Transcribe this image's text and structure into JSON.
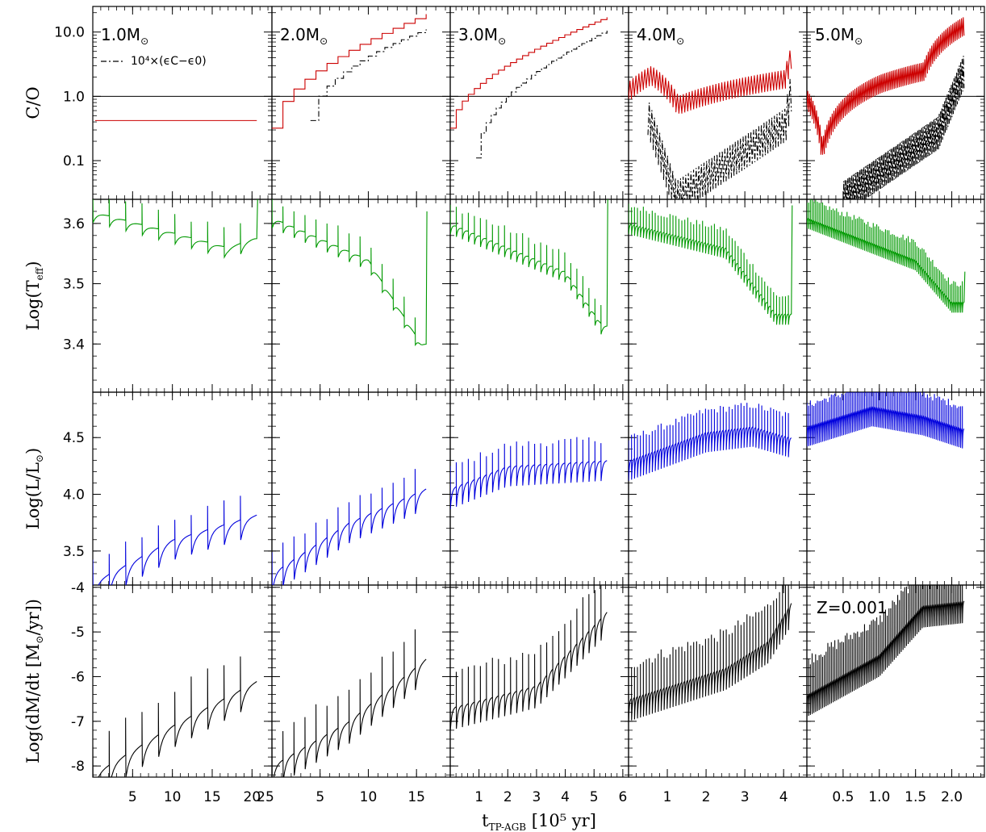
{
  "chart_data": {
    "type": "line",
    "grid": {
      "rows": [
        "C/O",
        "Log(Teff)",
        "Log(L/Lsun)",
        "Log(dM/dt)"
      ],
      "columns": [
        "1.0M",
        "2.0M",
        "3.0M",
        "4.0M",
        "5.0M"
      ]
    },
    "panel_labels": [
      "1.0M",
      "2.0M",
      "3.0M",
      "4.0M",
      "5.0M"
    ],
    "metallicity_label": "Z=0.001",
    "legend_label": "10⁴×(ϵC−ϵ0)",
    "x_axis": {
      "label_main": "t",
      "label_sub": "TP-AGB",
      "label_rest": " [10⁵ yr]",
      "columns": [
        {
          "range": [
            0,
            22.5
          ],
          "ticks": [
            5,
            10,
            15,
            20
          ],
          "tick_labels": [
            "5",
            "10",
            "15",
            "20"
          ],
          "edge_label": "25"
        },
        {
          "range": [
            0,
            18.5
          ],
          "ticks": [
            5,
            10,
            15
          ],
          "tick_labels": [
            "5",
            "10",
            "15"
          ]
        },
        {
          "range": [
            0,
            6.2
          ],
          "ticks": [
            1,
            2,
            3,
            4,
            5,
            6
          ],
          "tick_labels": [
            "1",
            "2",
            "3",
            "4",
            "5",
            "6"
          ]
        },
        {
          "range": [
            0,
            4.6
          ],
          "ticks": [
            1,
            2,
            3,
            4
          ],
          "tick_labels": [
            "1",
            "2",
            "3",
            "4"
          ]
        },
        {
          "range": [
            0,
            2.45
          ],
          "ticks": [
            0.5,
            1.0,
            1.5,
            2.0
          ],
          "tick_labels": [
            "0.5",
            "1.0",
            "1.5",
            "2.0"
          ]
        }
      ]
    },
    "rows": [
      {
        "ylabel": "C/O",
        "scale": "log",
        "ylim": [
          0.025,
          25
        ],
        "ticks": [
          0.1,
          1.0,
          10.0
        ],
        "tick_labels": [
          "0.1",
          "1.0",
          "10.0"
        ],
        "reference_line": 1.0
      },
      {
        "ylabel": "Log(Teff)",
        "scale": "linear",
        "ylim": [
          3.32,
          3.64
        ],
        "ticks": [
          3.4,
          3.5,
          3.6
        ],
        "tick_labels": [
          "3.4",
          "3.5",
          "3.6"
        ]
      },
      {
        "ylabel": "Log(L/Lsun)",
        "scale": "linear",
        "ylim": [
          3.2,
          4.9
        ],
        "ticks": [
          3.5,
          4.0,
          4.5
        ],
        "tick_labels": [
          "3.5",
          "4.0",
          "4.5"
        ]
      },
      {
        "ylabel": "Log(dM/dt [Msun/yr])",
        "scale": "linear",
        "ylim": [
          -8.25,
          -3.95
        ],
        "ticks": [
          -8,
          -7,
          -6,
          -5,
          -4
        ],
        "tick_labels": [
          "-8",
          "-7",
          "-6",
          "-5",
          "-4"
        ]
      }
    ],
    "series_colors": {
      "co": "#cc0000",
      "eps": "#000000",
      "teff": "#009900",
      "lum": "#0000dd",
      "mdot": "#000000",
      "refline": "#000000"
    },
    "models": [
      {
        "mass": 1.0,
        "tmax": 20.6,
        "npulses": 10,
        "co": [
          [
            0.3,
            0.42
          ],
          [
            20.6,
            0.42
          ]
        ],
        "co_steps": false,
        "teff_base": [
          [
            0.0,
            3.62
          ],
          [
            10,
            3.585
          ],
          [
            17,
            3.56
          ],
          [
            20.2,
            3.575
          ]
        ],
        "teff_final": 3.64,
        "lum_base": [
          [
            0.0,
            3.22
          ],
          [
            10,
            3.6
          ],
          [
            20.6,
            3.82
          ]
        ],
        "mdot_base": [
          [
            0.0,
            -8.2
          ],
          [
            10,
            -7.1
          ],
          [
            20.6,
            -6.1
          ]
        ]
      },
      {
        "mass": 2.0,
        "tmax": 16.0,
        "npulses": 14,
        "co": [
          [
            0.0,
            0.32
          ],
          [
            16.0,
            19.0
          ]
        ],
        "co_steps": true,
        "eps": [
          [
            4.0,
            0.42
          ],
          [
            16.0,
            11.0
          ]
        ],
        "teff_base": [
          [
            0.0,
            3.61
          ],
          [
            10,
            3.54
          ],
          [
            15.5,
            3.4
          ]
        ],
        "teff_final": 3.62,
        "lum_base": [
          [
            0.0,
            3.3
          ],
          [
            8,
            3.75
          ],
          [
            16.0,
            4.05
          ]
        ],
        "mdot_base": [
          [
            0.0,
            -8.0
          ],
          [
            8,
            -7.0
          ],
          [
            16.0,
            -5.6
          ]
        ]
      },
      {
        "mass": 3.0,
        "tmax": 5.45,
        "npulses": 26,
        "co": [
          [
            0.0,
            0.32
          ],
          [
            5.45,
            17.0
          ]
        ],
        "co_steps": true,
        "eps": [
          [
            0.9,
            0.11
          ],
          [
            5.45,
            10.5
          ]
        ],
        "teff_base": [
          [
            0.0,
            3.6
          ],
          [
            4,
            3.52
          ],
          [
            5.3,
            3.43
          ]
        ],
        "teff_final": 3.65,
        "lum_base": [
          [
            0.0,
            4.05
          ],
          [
            2,
            4.25
          ],
          [
            5.45,
            4.3
          ]
        ],
        "mdot_base": [
          [
            0.0,
            -6.7
          ],
          [
            3,
            -6.2
          ],
          [
            5.45,
            -4.55
          ]
        ]
      },
      {
        "mass": 4.0,
        "tmax": 4.2,
        "npulses": 55,
        "co": [
          [
            0.0,
            1.3
          ],
          [
            0.55,
            2.2
          ],
          [
            1.25,
            0.75
          ],
          [
            4.0,
            1.9
          ],
          [
            4.2,
            5.0
          ]
        ],
        "co_steps": false,
        "eps": [
          [
            0.5,
            0.5
          ],
          [
            1.2,
            0.03
          ],
          [
            4.0,
            0.4
          ],
          [
            4.2,
            2.0
          ]
        ],
        "teff_base": [
          [
            0.0,
            3.6
          ],
          [
            2.5,
            3.56
          ],
          [
            3.8,
            3.45
          ]
        ],
        "teff_final": 3.63,
        "lum_base": [
          [
            0.0,
            4.3
          ],
          [
            2,
            4.55
          ],
          [
            3.2,
            4.6
          ],
          [
            4.2,
            4.5
          ]
        ],
        "mdot_base": [
          [
            0.0,
            -6.5
          ],
          [
            2.5,
            -5.8
          ],
          [
            3.6,
            -5.2
          ],
          [
            4.2,
            -4.35
          ]
        ]
      },
      {
        "mass": 5.0,
        "tmax": 2.17,
        "npulses": 90,
        "co": [
          [
            0.0,
            0.9
          ],
          [
            0.2,
            0.15
          ],
          [
            1.0,
            1.6
          ],
          [
            1.6,
            2.5
          ],
          [
            2.17,
            13.0
          ]
        ],
        "co_steps": false,
        "eps": [
          [
            0.5,
            0.03
          ],
          [
            1.8,
            0.3
          ],
          [
            2.17,
            3.0
          ]
        ],
        "teff_base": [
          [
            0.0,
            3.61
          ],
          [
            1.5,
            3.54
          ],
          [
            2.0,
            3.47
          ]
        ],
        "teff_final": 3.52,
        "lum_base": [
          [
            0.0,
            4.6
          ],
          [
            0.9,
            4.78
          ],
          [
            1.6,
            4.7
          ],
          [
            2.17,
            4.58
          ]
        ],
        "mdot_base": [
          [
            0.0,
            -6.4
          ],
          [
            1.0,
            -5.5
          ],
          [
            1.6,
            -4.4
          ],
          [
            2.17,
            -4.3
          ]
        ]
      }
    ]
  }
}
